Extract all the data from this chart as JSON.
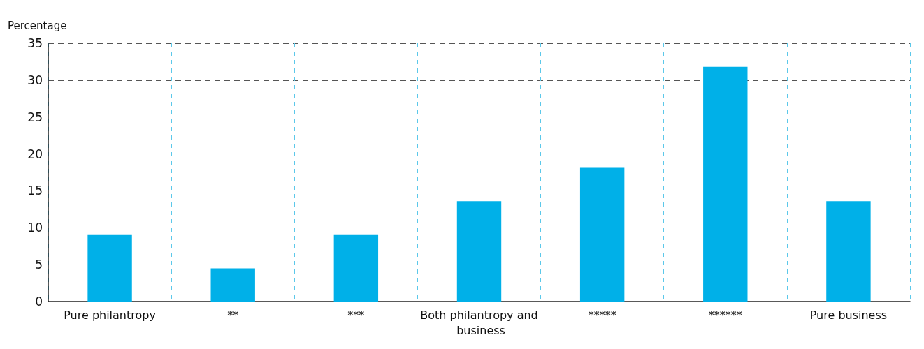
{
  "chart_data": {
    "type": "bar",
    "ylabel": "Percentage",
    "categories": [
      "Pure philantropy",
      "**",
      "***",
      "Both philantropy and business",
      "*****",
      "******",
      "Pure business"
    ],
    "values": [
      9.1,
      4.5,
      9.1,
      13.6,
      18.2,
      31.8,
      13.6
    ],
    "color": "#00b0e8",
    "ylim": [
      0,
      35
    ],
    "yticks": [
      0,
      5,
      10,
      15,
      20,
      25,
      30,
      35
    ],
    "grid": true
  }
}
